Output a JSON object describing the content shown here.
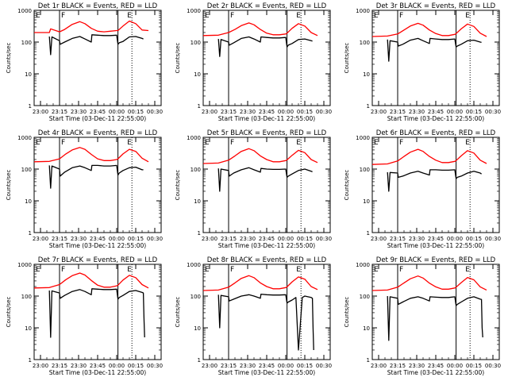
{
  "colors": {
    "background": "#ffffff",
    "axes": "#000000",
    "events": "#000000",
    "lld": "#ff0000"
  },
  "shared": {
    "ylabel": "Counts/sec",
    "xlabel": "Start Time (03-Dec-11 22:55:00)",
    "x_tick_labels": [
      "23:00",
      "23:15",
      "23:30",
      "23:45",
      "00:00",
      "00:15",
      "00:30"
    ],
    "y_tick_labels": [
      "1",
      "10",
      "100",
      "1000"
    ],
    "xlim_minutes": [
      0,
      100
    ],
    "ylim": [
      1,
      1000
    ],
    "x_scale": "linear",
    "y_scale": "log",
    "marker_labels": [
      {
        "text": "E",
        "minute": 0
      },
      {
        "text": "F",
        "minute": 20
      },
      {
        "text": "E",
        "minute": 72
      }
    ],
    "solid_vlines_minutes": [
      20,
      66
    ],
    "dotted_vlines_minutes": [
      77
    ]
  },
  "chart_data": [
    {
      "type": "line",
      "title": "Det 1r BLACK = Events, RED = LLD",
      "series": [
        {
          "name": "LLD",
          "color": "red",
          "x": [
            0,
            12,
            13,
            20,
            24,
            30,
            36,
            40,
            45,
            50,
            55,
            60,
            65,
            66,
            70,
            75,
            80,
            85,
            90
          ],
          "y": [
            200,
            200,
            260,
            210,
            250,
            360,
            440,
            380,
            270,
            220,
            210,
            220,
            230,
            230,
            320,
            460,
            380,
            240,
            230
          ]
        },
        {
          "name": "Events",
          "color": "black",
          "x": [
            12,
            13,
            14,
            20,
            20.5,
            24,
            30,
            36,
            40,
            45,
            45.5,
            50,
            55,
            60,
            65,
            66,
            67,
            70,
            75,
            80,
            85,
            86
          ],
          "y": [
            150,
            40,
            145,
            110,
            85,
            100,
            130,
            150,
            125,
            100,
            170,
            165,
            160,
            160,
            165,
            85,
            95,
            105,
            145,
            150,
            130,
            125
          ]
        }
      ]
    },
    {
      "type": "line",
      "title": "Det 2r BLACK = Events, RED = LLD",
      "series": [
        {
          "name": "LLD",
          "color": "red",
          "x": [
            0,
            12,
            20,
            25,
            30,
            36,
            40,
            45,
            50,
            55,
            60,
            65,
            66,
            70,
            75,
            80,
            85,
            90
          ],
          "y": [
            160,
            165,
            200,
            250,
            330,
            400,
            350,
            250,
            190,
            170,
            170,
            180,
            190,
            270,
            380,
            320,
            200,
            160
          ]
        },
        {
          "name": "Events",
          "color": "black",
          "x": [
            12,
            13,
            14,
            20,
            20.5,
            24,
            30,
            36,
            40,
            45,
            45.5,
            50,
            55,
            60,
            65,
            66,
            67,
            70,
            75,
            80,
            85,
            86
          ],
          "y": [
            125,
            35,
            120,
            100,
            80,
            95,
            130,
            145,
            125,
            100,
            145,
            140,
            135,
            135,
            140,
            70,
            80,
            90,
            120,
            125,
            110,
            108
          ]
        }
      ]
    },
    {
      "type": "line",
      "title": "Det 3r BLACK = Events, RED = LLD",
      "series": [
        {
          "name": "LLD",
          "color": "red",
          "x": [
            0,
            12,
            20,
            25,
            30,
            36,
            40,
            45,
            50,
            55,
            60,
            65,
            66,
            70,
            75,
            80,
            85,
            90
          ],
          "y": [
            150,
            155,
            180,
            240,
            320,
            390,
            340,
            240,
            185,
            160,
            160,
            175,
            185,
            260,
            370,
            310,
            190,
            150
          ]
        },
        {
          "name": "Events",
          "color": "black",
          "x": [
            12,
            13,
            14,
            20,
            20.5,
            24,
            30,
            36,
            40,
            45,
            45.5,
            50,
            55,
            60,
            65,
            66,
            67,
            70,
            75,
            80,
            85,
            86
          ],
          "y": [
            120,
            25,
            110,
            100,
            75,
            85,
            115,
            130,
            110,
            90,
            130,
            125,
            120,
            120,
            125,
            70,
            75,
            85,
            110,
            115,
            100,
            98
          ]
        }
      ]
    },
    {
      "type": "line",
      "title": "Det 4r BLACK = Events, RED = LLD",
      "series": [
        {
          "name": "LLD",
          "color": "red",
          "x": [
            0,
            12,
            20,
            25,
            30,
            36,
            40,
            45,
            50,
            55,
            60,
            65,
            66,
            70,
            75,
            80,
            85,
            90
          ],
          "y": [
            170,
            175,
            210,
            300,
            400,
            480,
            420,
            290,
            210,
            185,
            185,
            200,
            210,
            300,
            420,
            360,
            220,
            170
          ]
        },
        {
          "name": "Events",
          "color": "black",
          "x": [
            12,
            13,
            14,
            20,
            20.5,
            24,
            30,
            36,
            40,
            45,
            45.5,
            50,
            55,
            60,
            65,
            66,
            67,
            70,
            75,
            80,
            85,
            86
          ],
          "y": [
            130,
            25,
            125,
            100,
            60,
            80,
            110,
            125,
            110,
            90,
            130,
            130,
            125,
            125,
            130,
            65,
            75,
            90,
            110,
            115,
            95,
            95
          ]
        }
      ]
    },
    {
      "type": "line",
      "title": "Det 5r BLACK = Events, RED = LLD",
      "series": [
        {
          "name": "LLD",
          "color": "red",
          "x": [
            0,
            12,
            20,
            25,
            30,
            36,
            40,
            45,
            50,
            55,
            60,
            65,
            66,
            70,
            75,
            80,
            85,
            90
          ],
          "y": [
            150,
            155,
            190,
            260,
            360,
            440,
            380,
            260,
            200,
            170,
            170,
            185,
            195,
            270,
            390,
            330,
            200,
            160
          ]
        },
        {
          "name": "Events",
          "color": "black",
          "x": [
            12,
            13,
            14,
            20,
            20.5,
            24,
            30,
            36,
            40,
            45,
            45.5,
            50,
            55,
            60,
            65,
            66,
            67,
            70,
            75,
            80,
            85,
            86
          ],
          "y": [
            105,
            20,
            100,
            90,
            60,
            75,
            95,
            110,
            95,
            80,
            105,
            100,
            98,
            98,
            100,
            55,
            60,
            70,
            90,
            100,
            85,
            82
          ]
        }
      ]
    },
    {
      "type": "line",
      "title": "Det 6r BLACK = Events, RED = LLD",
      "series": [
        {
          "name": "LLD",
          "color": "red",
          "x": [
            0,
            12,
            20,
            25,
            30,
            36,
            40,
            45,
            50,
            55,
            60,
            65,
            66,
            70,
            75,
            80,
            85,
            90
          ],
          "y": [
            140,
            145,
            180,
            250,
            340,
            420,
            360,
            250,
            190,
            160,
            160,
            175,
            185,
            260,
            380,
            320,
            190,
            150
          ]
        },
        {
          "name": "Events",
          "color": "black",
          "x": [
            12,
            13,
            14,
            20,
            20.5,
            24,
            30,
            36,
            40,
            45,
            45.5,
            50,
            55,
            60,
            65,
            66,
            67,
            70,
            75,
            80,
            85,
            86
          ],
          "y": [
            80,
            20,
            78,
            75,
            55,
            60,
            75,
            85,
            75,
            65,
            95,
            95,
            92,
            92,
            95,
            50,
            55,
            60,
            75,
            85,
            75,
            70
          ]
        }
      ]
    },
    {
      "type": "line",
      "title": "Det 7r BLACK = Events, RED = LLD",
      "series": [
        {
          "name": "LLD",
          "color": "red",
          "x": [
            0,
            12,
            20,
            25,
            30,
            36,
            40,
            45,
            50,
            55,
            60,
            65,
            66,
            70,
            75,
            80,
            85,
            90
          ],
          "y": [
            180,
            185,
            230,
            330,
            440,
            530,
            460,
            310,
            220,
            190,
            190,
            210,
            220,
            320,
            450,
            380,
            230,
            180
          ]
        },
        {
          "name": "Events",
          "color": "black",
          "x": [
            12,
            13,
            14,
            20,
            20.5,
            24,
            30,
            36,
            40,
            45,
            45.5,
            50,
            55,
            60,
            65,
            66,
            67,
            70,
            75,
            80,
            85,
            86,
            86.5,
            87
          ],
          "y": [
            150,
            5,
            145,
            125,
            85,
            105,
            140,
            160,
            140,
            110,
            170,
            165,
            160,
            160,
            165,
            80,
            90,
            105,
            140,
            150,
            130,
            125,
            20,
            5
          ]
        }
      ]
    },
    {
      "type": "line",
      "title": "Det 8r BLACK = Events, RED = LLD",
      "series": [
        {
          "name": "LLD",
          "color": "red",
          "x": [
            0,
            12,
            20,
            25,
            30,
            36,
            40,
            45,
            50,
            55,
            60,
            65,
            66,
            70,
            75,
            80,
            85,
            90
          ],
          "y": [
            150,
            155,
            190,
            260,
            360,
            440,
            380,
            260,
            200,
            170,
            170,
            185,
            195,
            280,
            400,
            340,
            200,
            160
          ]
        },
        {
          "name": "Events",
          "color": "black",
          "x": [
            12,
            13,
            14,
            20,
            20.5,
            24,
            30,
            36,
            40,
            45,
            45.5,
            50,
            55,
            60,
            65,
            66,
            67,
            70,
            73,
            75,
            78,
            80,
            85,
            86,
            86.5,
            87
          ],
          "y": [
            110,
            10,
            105,
            95,
            70,
            80,
            100,
            110,
            100,
            85,
            115,
            110,
            108,
            108,
            110,
            60,
            65,
            75,
            90,
            2,
            90,
            100,
            90,
            85,
            10,
            2
          ]
        }
      ]
    },
    {
      "type": "line",
      "title": "Det 9r BLACK = Events, RED = LLD",
      "series": [
        {
          "name": "LLD",
          "color": "red",
          "x": [
            0,
            12,
            20,
            25,
            30,
            36,
            40,
            45,
            50,
            55,
            60,
            65,
            66,
            70,
            75,
            80,
            85,
            90
          ],
          "y": [
            150,
            155,
            190,
            260,
            350,
            430,
            370,
            255,
            195,
            165,
            165,
            180,
            190,
            265,
            385,
            325,
            195,
            155
          ]
        },
        {
          "name": "Events",
          "color": "black",
          "x": [
            12,
            13,
            14,
            20,
            20.5,
            24,
            30,
            36,
            40,
            45,
            45.5,
            50,
            55,
            60,
            65,
            66,
            67,
            70,
            75,
            80,
            85,
            86,
            86.5,
            87
          ],
          "y": [
            100,
            4,
            95,
            85,
            55,
            65,
            85,
            95,
            85,
            70,
            95,
            92,
            90,
            90,
            95,
            50,
            55,
            65,
            85,
            95,
            80,
            78,
            10,
            5
          ]
        }
      ]
    }
  ]
}
